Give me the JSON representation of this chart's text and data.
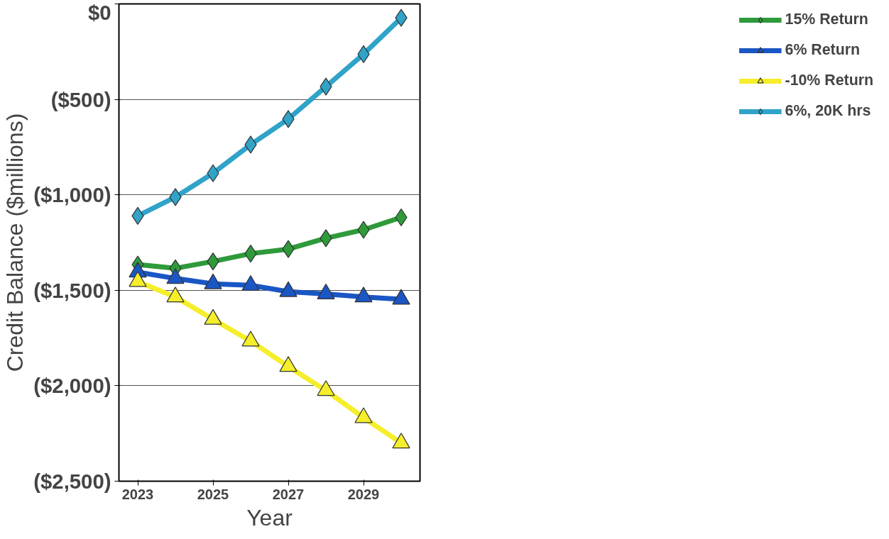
{
  "chart_data": {
    "type": "line",
    "xlabel": "Year",
    "ylabel": "Credit Balance ($millions)",
    "x": [
      2023,
      2024,
      2025,
      2026,
      2027,
      2028,
      2029,
      2030
    ],
    "xlim": [
      2022.5,
      2030.5
    ],
    "xticks": [
      2023,
      2025,
      2027,
      2029
    ],
    "ylim": [
      -2500,
      0
    ],
    "yticks": [
      {
        "value": 0,
        "label": "$0"
      },
      {
        "value": -500,
        "label": "($500)"
      },
      {
        "value": -1000,
        "label": "($1,000)"
      },
      {
        "value": -1500,
        "label": "($1,500)"
      },
      {
        "value": -2000,
        "label": "($2,000)"
      },
      {
        "value": -2500,
        "label": "($2,500)"
      }
    ],
    "grid": "y",
    "legend": "right",
    "series": [
      {
        "name": "15% Return",
        "color": "#2e9a3a",
        "marker": "diamond",
        "values": [
          -1365,
          -1385,
          -1349,
          -1308,
          -1284,
          -1227,
          -1183,
          -1118
        ]
      },
      {
        "name": "6% Return",
        "color": "#1a56c4",
        "marker": "triangle",
        "values": [
          -1405,
          -1438,
          -1466,
          -1474,
          -1507,
          -1519,
          -1535,
          -1547
        ]
      },
      {
        "name": "-10% Return",
        "color": "#f5ee2a",
        "marker": "triangle",
        "values": [
          -1454,
          -1535,
          -1652,
          -1766,
          -1899,
          -2025,
          -2167,
          -2300
        ]
      },
      {
        "name": "6%, 20K hrs",
        "color": "#2fa3c8",
        "marker": "diamond",
        "values": [
          -1110,
          -1012,
          -887,
          -737,
          -603,
          -433,
          -263,
          -73
        ]
      }
    ]
  }
}
